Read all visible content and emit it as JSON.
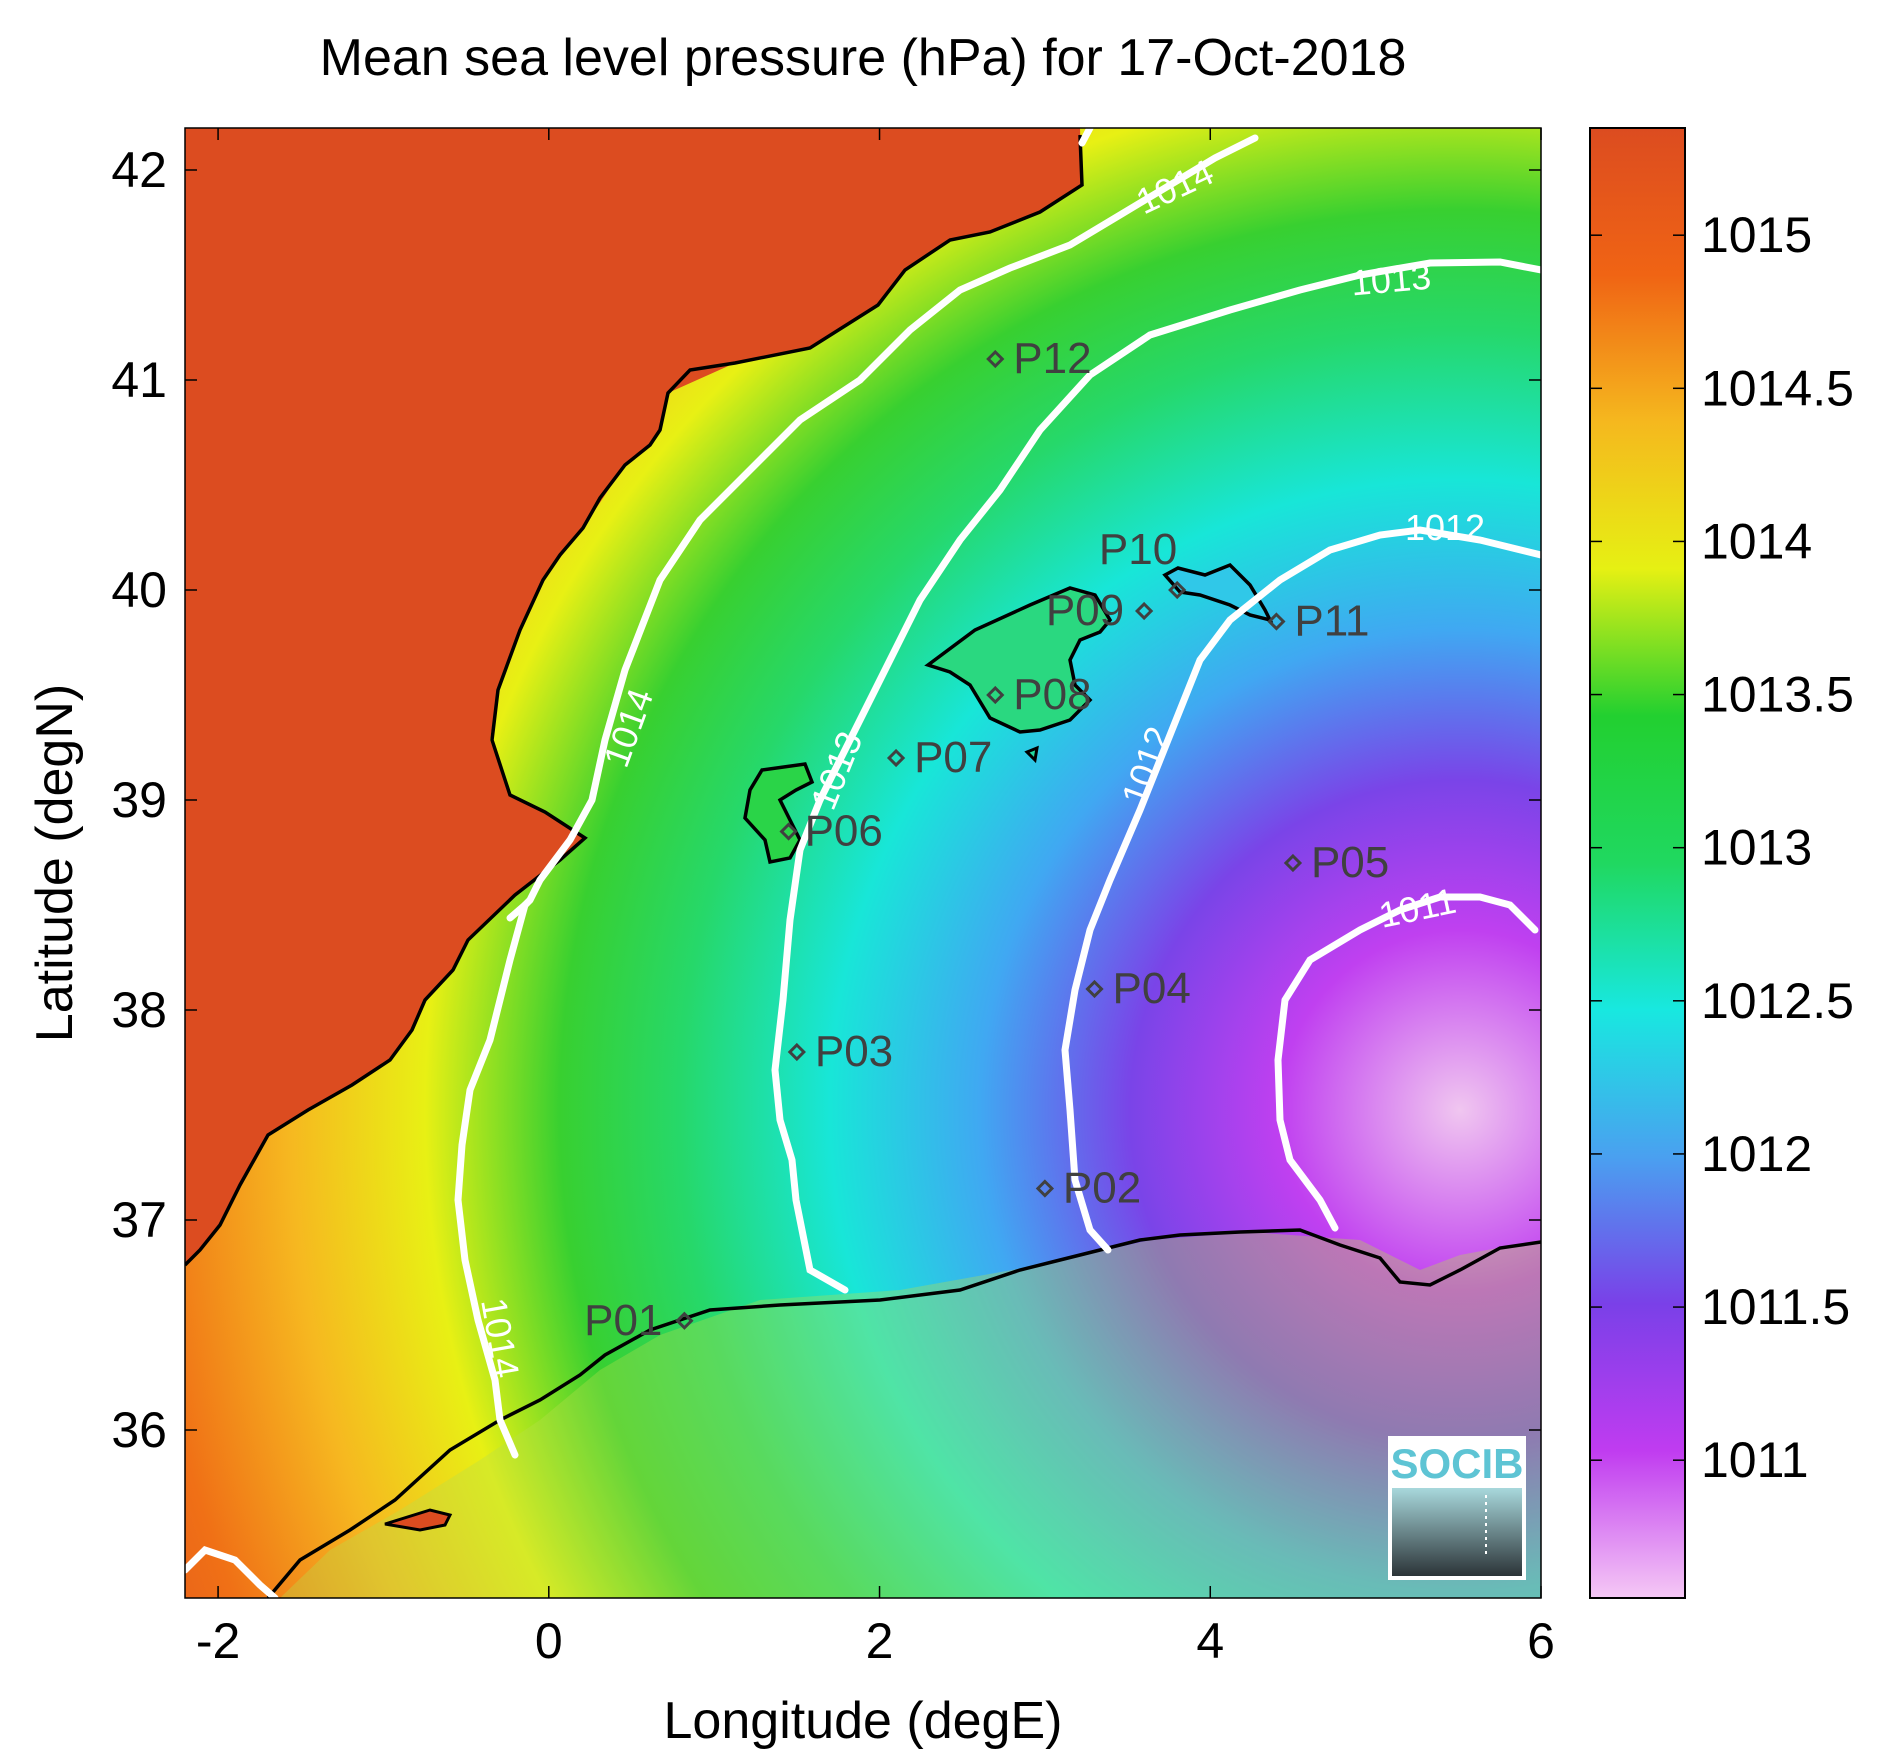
{
  "title": "Mean sea level pressure (hPa) for 17-Oct-2018",
  "x_axis": {
    "label": "Longitude (degE)",
    "range": [
      -2.2,
      6
    ],
    "ticks": [
      -2,
      0,
      2,
      4,
      6
    ],
    "tick_labels": [
      "-2",
      "0",
      "2",
      "4",
      "6"
    ]
  },
  "y_axis": {
    "label": "Latitude (degN)",
    "range": [
      35.2,
      42.2
    ],
    "ticks": [
      36,
      37,
      38,
      39,
      40,
      41,
      42
    ],
    "tick_labels": [
      "36",
      "37",
      "38",
      "39",
      "40",
      "41",
      "42"
    ]
  },
  "colorbar": {
    "range": [
      1010.55,
      1015.35
    ],
    "ticks": [
      1011,
      1011.5,
      1012,
      1012.5,
      1013,
      1013.5,
      1014,
      1014.5,
      1015
    ],
    "tick_labels": [
      "1011",
      "1011.5",
      "1012",
      "1012.5",
      "1013",
      "1013.5",
      "1014",
      "1014.5",
      "1015"
    ],
    "colormap": [
      "#f5c8f5",
      "#c03cf0",
      "#7a40e8",
      "#4aa0f0",
      "#18e8e0",
      "#20d860",
      "#22d030",
      "#e6f013",
      "#f5b81e",
      "#f06414",
      "#dc4c20"
    ]
  },
  "points": [
    {
      "name": "P01",
      "lon": 0.82,
      "lat": 36.52
    },
    {
      "name": "P02",
      "lon": 3.0,
      "lat": 37.15
    },
    {
      "name": "P03",
      "lon": 1.5,
      "lat": 37.8
    },
    {
      "name": "P04",
      "lon": 3.3,
      "lat": 38.1
    },
    {
      "name": "P05",
      "lon": 4.5,
      "lat": 38.7
    },
    {
      "name": "P06",
      "lon": 1.45,
      "lat": 38.85
    },
    {
      "name": "P07",
      "lon": 2.1,
      "lat": 39.2
    },
    {
      "name": "P08",
      "lon": 2.7,
      "lat": 39.5
    },
    {
      "name": "P09",
      "lon": 3.6,
      "lat": 39.9
    },
    {
      "name": "P10",
      "lon": 3.8,
      "lat": 40.0
    },
    {
      "name": "P11",
      "lon": 4.4,
      "lat": 39.85
    },
    {
      "name": "P12",
      "lon": 2.7,
      "lat": 41.1
    }
  ],
  "contour_labels": [
    "1014",
    "1014",
    "1014",
    "1013",
    "1013",
    "1012",
    "1012",
    "1011"
  ],
  "logo": {
    "text": "SOCIB"
  },
  "colors": {
    "land_high": "#dc4c20",
    "coastline": "#000000",
    "contour": "#ffffff",
    "marker": "#404040",
    "logo_text": "#5ec4d4"
  }
}
